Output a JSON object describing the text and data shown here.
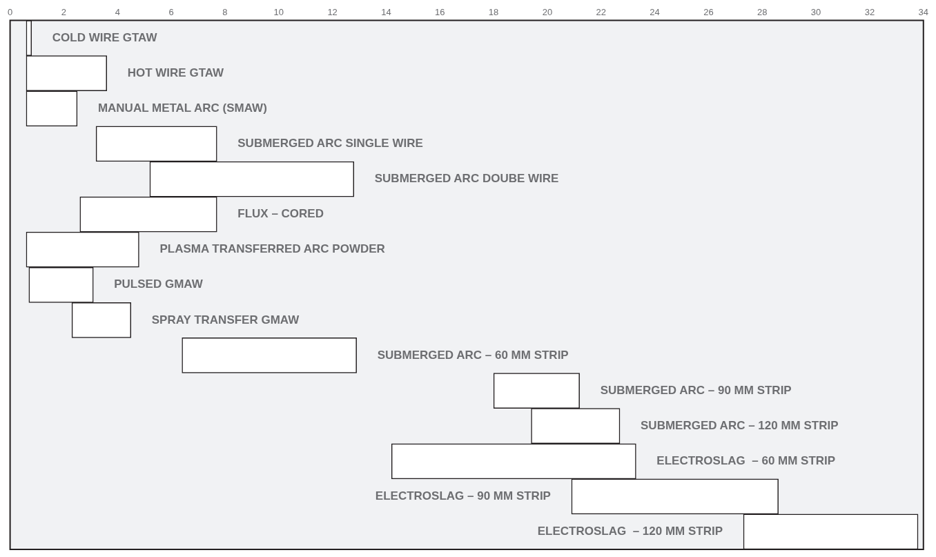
{
  "chart_data": {
    "type": "bar",
    "orientation": "horizontal",
    "categories": [
      "COLD WIRE GTAW",
      "HOT WIRE GTAW",
      "MANUAL METAL ARC (SMAW)",
      "SUBMERGED ARC SINGLE WIRE",
      "SUBMERGED ARC DOUBE WIRE",
      "FLUX – CORED",
      "PLASMA TRANSFERRED ARC POWDER",
      "PULSED GMAW",
      "SPRAY TRANSFER GMAW",
      "SUBMERGED ARC – 60 MM STRIP",
      "SUBMERGED ARC – 90 MM STRIP",
      "SUBMERGED ARC – 120 MM STRIP",
      "ELECTROSLAG  – 60 MM STRIP",
      "ELECTROSLAG – 90 MM STRIP",
      "ELECTROSLAG  – 120 MM STRIP"
    ],
    "base": [
      0.6,
      0.6,
      0.6,
      3.2,
      5.2,
      2.6,
      0.6,
      0.7,
      2.3,
      6.4,
      18.0,
      19.4,
      14.2,
      20.9,
      27.3
    ],
    "values": [
      0.2,
      3.0,
      1.9,
      4.5,
      7.6,
      5.1,
      4.2,
      2.4,
      2.2,
      6.5,
      3.2,
      3.3,
      9.1,
      7.7,
      6.5
    ],
    "color": "#ffffff",
    "xlim": [
      0,
      34
    ],
    "xticks": [
      0,
      2,
      4,
      6,
      8,
      10,
      12,
      14,
      16,
      18,
      20,
      22,
      24,
      26,
      28,
      30,
      32,
      34
    ]
  }
}
